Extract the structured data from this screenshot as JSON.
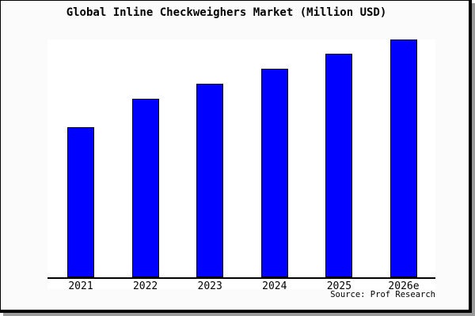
{
  "frame": {
    "background": "#fbfbfb",
    "border_color": "#000000",
    "shadow_color": "#9a9a9a"
  },
  "chart_data": {
    "type": "bar",
    "title": "Global Inline Checkweighers Market (Million USD)",
    "categories": [
      "2021",
      "2022",
      "2023",
      "2024",
      "2025",
      "2026e"
    ],
    "values": [
      63,
      75,
      81.4,
      87.7,
      93.9,
      100
    ],
    "values_note": "relative index estimated from bar heights; 2026e bar = 100 (chart shows no y-axis scale or data labels)",
    "xlabel": "",
    "ylabel": "",
    "ylim": [
      0,
      100
    ],
    "grid": false,
    "legend": false,
    "y_axis_shown": false,
    "bar_color": "#0000ff",
    "bar_border_color": "#000000",
    "source": "Source: Prof Research"
  }
}
